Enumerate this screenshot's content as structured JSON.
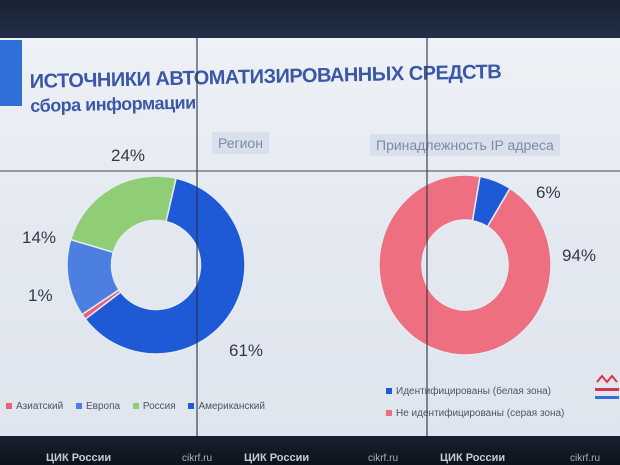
{
  "slide": {
    "title_line1": "ИСТОЧНИКИ АВТОМАТИЗИРОВАННЫХ СРЕДСТВ",
    "title_line2": "сбора информации",
    "footer": [
      "ЦИК России",
      "cikrf.ru",
      "ЦИК России",
      "cikrf.ru",
      "ЦИК России",
      "cikrf.ru"
    ]
  },
  "chart_data": [
    {
      "type": "pie",
      "title": "Регион",
      "categories": [
        "Азиатский",
        "Европа",
        "Россия",
        "Американский"
      ],
      "values": [
        1,
        14,
        24,
        61
      ],
      "labels": [
        "1%",
        "14%",
        "24%",
        "61%"
      ],
      "colors": [
        "#e9607a",
        "#4c7fe0",
        "#8fce76",
        "#1f5ad6"
      ],
      "legend": "bottom"
    },
    {
      "type": "pie",
      "title": "Принадлежность IP адреса",
      "categories": [
        "Идентифицированы (белая зона)",
        "Не идентифицированы (серая зона)"
      ],
      "values": [
        6,
        94
      ],
      "labels": [
        "6%",
        "94%"
      ],
      "colors": [
        "#1f5ad6",
        "#ee6f80"
      ],
      "legend": "bottom"
    }
  ]
}
